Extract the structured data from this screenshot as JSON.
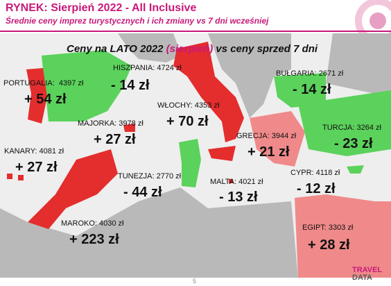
{
  "header": {
    "title": "RYNEK: Sierpień 2022 - All Inclusive",
    "subtitle": "Średnie ceny imprez turystycznych i ich zmiany vs 7 dni wcześniej"
  },
  "map_title": {
    "before": "Ceny na LATO 2022 ",
    "highlight": "(sierpień)",
    "after": " vs ceny sprzed 7 dni"
  },
  "regions": [
    {
      "label": "HISZPANIA: 4724 zł",
      "change": "- 14 zł"
    },
    {
      "label": "PORTUGALIA:  4397 zł",
      "change": "+ 54 zł"
    },
    {
      "label": "WŁOCHY: 4353 zł",
      "change": "+ 70 zł"
    },
    {
      "label": "BUŁGARIA: 2671 zł",
      "change": "- 14 zł"
    },
    {
      "label": "MAJORKA: 3978 zł",
      "change": "+ 27 zł"
    },
    {
      "label": "GRECJA: 3944 zł",
      "change": "+ 21 zł"
    },
    {
      "label": "TURCJA: 3264 zł",
      "change": "- 23 zł"
    },
    {
      "label": "KANARY: 4081 zł",
      "change": "+ 27 zł"
    },
    {
      "label": "TUNEZJA: 2770 zł",
      "change": "- 44 zł"
    },
    {
      "label": "MALTA: 4021 zł",
      "change": "- 13 zł"
    },
    {
      "label": "CYPR: 4118 zł",
      "change": "- 12 zł"
    },
    {
      "label": "MAROKO: 4030 zł",
      "change": "+ 223 zł"
    },
    {
      "label": "EGIPT: 3303 zł",
      "change": "+ 28 zł"
    }
  ],
  "footer": {
    "page": "5",
    "logo_top": "TRAVEL",
    "logo_bottom": "DATA"
  }
}
